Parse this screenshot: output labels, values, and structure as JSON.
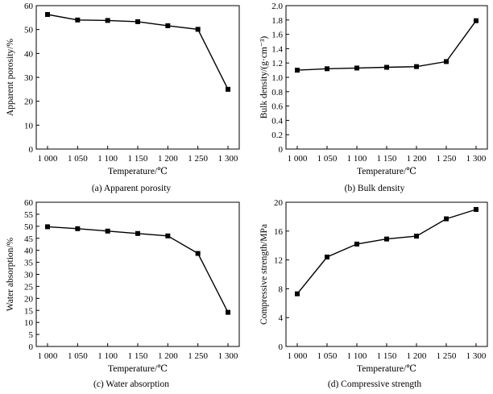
{
  "figure": {
    "captions": [
      "(a) Apparent porosity",
      "(b) Bulk density",
      "(c) Water absorption",
      "(d) Compressive strength"
    ]
  },
  "chart_data": [
    {
      "type": "line",
      "xlabel": "Temperature/℃",
      "ylabel": "Apparent porosity/%",
      "categories": [
        "1 000",
        "1 050",
        "1 100",
        "1 150",
        "1 200",
        "1 250",
        "1 300"
      ],
      "x": [
        1000,
        1050,
        1100,
        1150,
        1200,
        1250,
        1300
      ],
      "series": [
        {
          "values": [
            56.3,
            54.0,
            53.8,
            53.3,
            51.6,
            50.1,
            25.0
          ]
        }
      ],
      "ylim": [
        0,
        60
      ],
      "yticks": [
        "0",
        "10",
        "20",
        "30",
        "40",
        "50",
        "60"
      ],
      "marker": "square",
      "grid": false,
      "color": "#000000"
    },
    {
      "type": "line",
      "xlabel": "Temperature/℃",
      "ylabel": "Bulk density/(g·cm⁻³)",
      "categories": [
        "1 000",
        "1 050",
        "1 100",
        "1 150",
        "1 200",
        "1 250",
        "1 300"
      ],
      "x": [
        1000,
        1050,
        1100,
        1150,
        1200,
        1250,
        1300
      ],
      "series": [
        {
          "values": [
            1.1,
            1.12,
            1.13,
            1.14,
            1.15,
            1.22,
            1.79
          ]
        }
      ],
      "ylim": [
        0,
        2.0
      ],
      "yticks": [
        "0",
        "0.2",
        "0.4",
        "0.6",
        "0.8",
        "1.0",
        "1.2",
        "1.4",
        "1.6",
        "1.8",
        "2.0"
      ],
      "marker": "square",
      "grid": false,
      "color": "#000000"
    },
    {
      "type": "line",
      "xlabel": "Temperature/℃",
      "ylabel": "Water absorption/%",
      "categories": [
        "1 000",
        "1 050",
        "1 100",
        "1 150",
        "1 200",
        "1 250",
        "1 300"
      ],
      "x": [
        1000,
        1050,
        1100,
        1150,
        1200,
        1250,
        1300
      ],
      "series": [
        {
          "values": [
            49.8,
            49.0,
            48.0,
            47.0,
            46.0,
            38.7,
            14.2
          ]
        }
      ],
      "ylim": [
        0,
        60
      ],
      "yticks": [
        "0",
        "5",
        "10",
        "15",
        "20",
        "25",
        "30",
        "35",
        "40",
        "45",
        "50",
        "55",
        "60"
      ],
      "marker": "square",
      "grid": false,
      "color": "#000000"
    },
    {
      "type": "line",
      "xlabel": "Temperature/℃",
      "ylabel": "Compressive strength/MPa",
      "categories": [
        "1 000",
        "1 050",
        "1 100",
        "1 150",
        "1 200",
        "1 250",
        "1 300"
      ],
      "x": [
        1000,
        1050,
        1100,
        1150,
        1200,
        1250,
        1300
      ],
      "series": [
        {
          "values": [
            7.3,
            12.4,
            14.2,
            14.9,
            15.3,
            17.7,
            19.0
          ]
        }
      ],
      "ylim": [
        0,
        20
      ],
      "yticks": [
        "0",
        "4",
        "8",
        "12",
        "16",
        "20"
      ],
      "marker": "square",
      "grid": false,
      "color": "#000000"
    }
  ]
}
